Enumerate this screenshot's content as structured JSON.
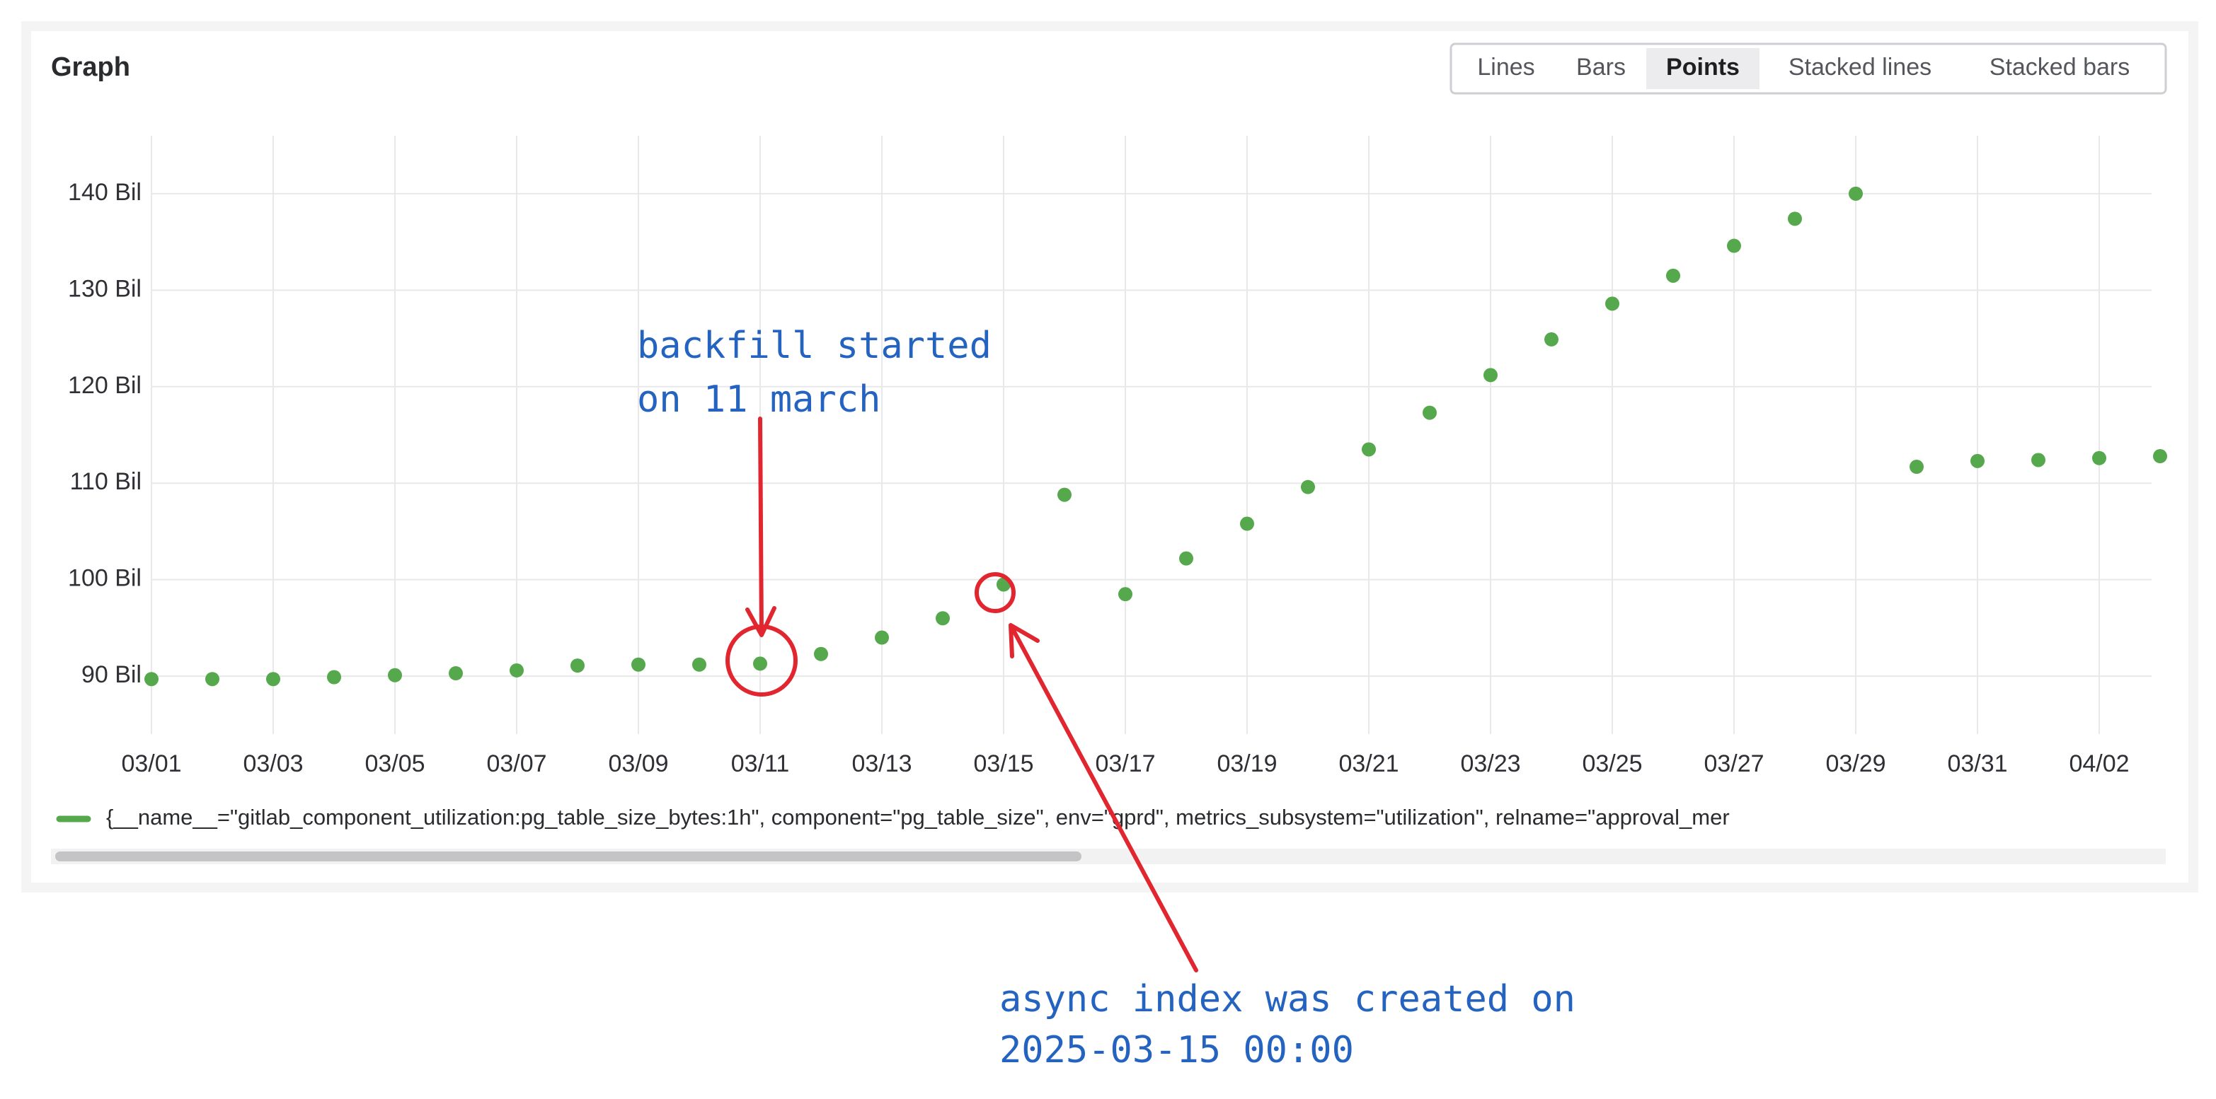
{
  "ui": {
    "panel_title": "Graph",
    "modes": [
      "Lines",
      "Bars",
      "Points",
      "Stacked lines",
      "Stacked bars"
    ],
    "selected_mode": "Points"
  },
  "chart_data": {
    "type": "scatter",
    "x": [
      "03/01",
      "03/02",
      "03/03",
      "03/04",
      "03/05",
      "03/06",
      "03/07",
      "03/08",
      "03/09",
      "03/10",
      "03/11",
      "03/12",
      "03/13",
      "03/14",
      "03/15",
      "03/16",
      "03/17",
      "03/18",
      "03/19",
      "03/20",
      "03/21",
      "03/22",
      "03/23",
      "03/24",
      "03/25",
      "03/26",
      "03/27",
      "03/28",
      "03/29",
      "03/30",
      "03/31",
      "04/01",
      "04/02",
      "04/03"
    ],
    "series": [
      {
        "name": "{__name__=\"gitlab_component_utilization:pg_table_size_bytes:1h\", component=\"pg_table_size\", env=\"gprd\", metrics_subsystem=\"utilization\", relname=\"approval_mer",
        "color": "#55a84b",
        "values": [
          89.7,
          89.7,
          89.7,
          89.9,
          90.1,
          90.3,
          90.6,
          91.1,
          91.2,
          91.2,
          91.3,
          92.3,
          94.0,
          96.0,
          99.5,
          108.8,
          98.5,
          102.2,
          105.8,
          109.6,
          113.5,
          117.3,
          121.2,
          124.9,
          128.6,
          131.5,
          134.6,
          137.4,
          140.0,
          111.7,
          112.3,
          112.4,
          112.6,
          112.8
        ]
      }
    ],
    "ylim": [
      84,
      146
    ],
    "yticks": [
      {
        "value": 90,
        "label": "90 Bil"
      },
      {
        "value": 100,
        "label": "100 Bil"
      },
      {
        "value": 110,
        "label": "110 Bil"
      },
      {
        "value": 120,
        "label": "120 Bil"
      },
      {
        "value": 130,
        "label": "130 Bil"
      },
      {
        "value": 140,
        "label": "140 Bil"
      }
    ],
    "xticks": [
      "03/01",
      "03/03",
      "03/05",
      "03/07",
      "03/09",
      "03/11",
      "03/13",
      "03/15",
      "03/17",
      "03/19",
      "03/21",
      "03/23",
      "03/25",
      "03/27",
      "03/29",
      "03/31",
      "04/02"
    ],
    "grid": true,
    "annotations": [
      "backfill started",
      "on 11 march",
      "async index was created on",
      "2025-03-15 00:00"
    ]
  }
}
